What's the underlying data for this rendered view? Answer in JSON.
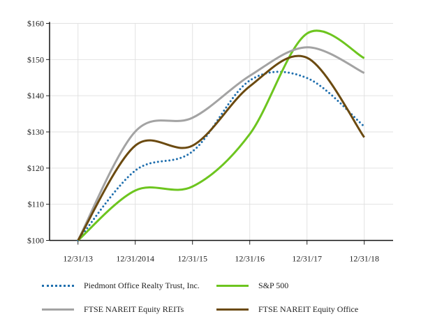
{
  "chart_data": {
    "type": "line",
    "title": "",
    "xlabel": "",
    "ylabel": "",
    "categories": [
      "12/31/13",
      "12/31/2014",
      "12/31/15",
      "12/31/16",
      "12/31/17",
      "12/31/18"
    ],
    "ylim": [
      100,
      160
    ],
    "yticks": [
      "$100",
      "$110",
      "$120",
      "$130",
      "$140",
      "$150",
      "$160"
    ],
    "ytick_values": [
      100,
      110,
      120,
      130,
      140,
      150,
      160
    ],
    "grid": true,
    "smooth": true,
    "legend_placement": "bottom",
    "series": [
      {
        "name": "Piedmont Office Realty Trust, Inc.",
        "values": [
          100,
          119.3,
          124.6,
          144.2,
          144.9,
          131.5
        ],
        "color": "#1f6fae",
        "style": "dotted"
      },
      {
        "name": "S&P 500",
        "values": [
          100,
          113.8,
          114.9,
          129.4,
          157.2,
          150.4
        ],
        "color": "#6dc51f",
        "style": "solid"
      },
      {
        "name": "FTSE NAREIT Equity REITs",
        "values": [
          100,
          130.1,
          133.9,
          145.5,
          153.4,
          146.3
        ],
        "color": "#a3a3a3",
        "style": "solid"
      },
      {
        "name": "FTSE NAREIT Equity Office",
        "values": [
          100,
          126.2,
          126.2,
          142.6,
          150.5,
          128.5
        ],
        "color": "#6b4a10",
        "style": "solid"
      }
    ]
  }
}
